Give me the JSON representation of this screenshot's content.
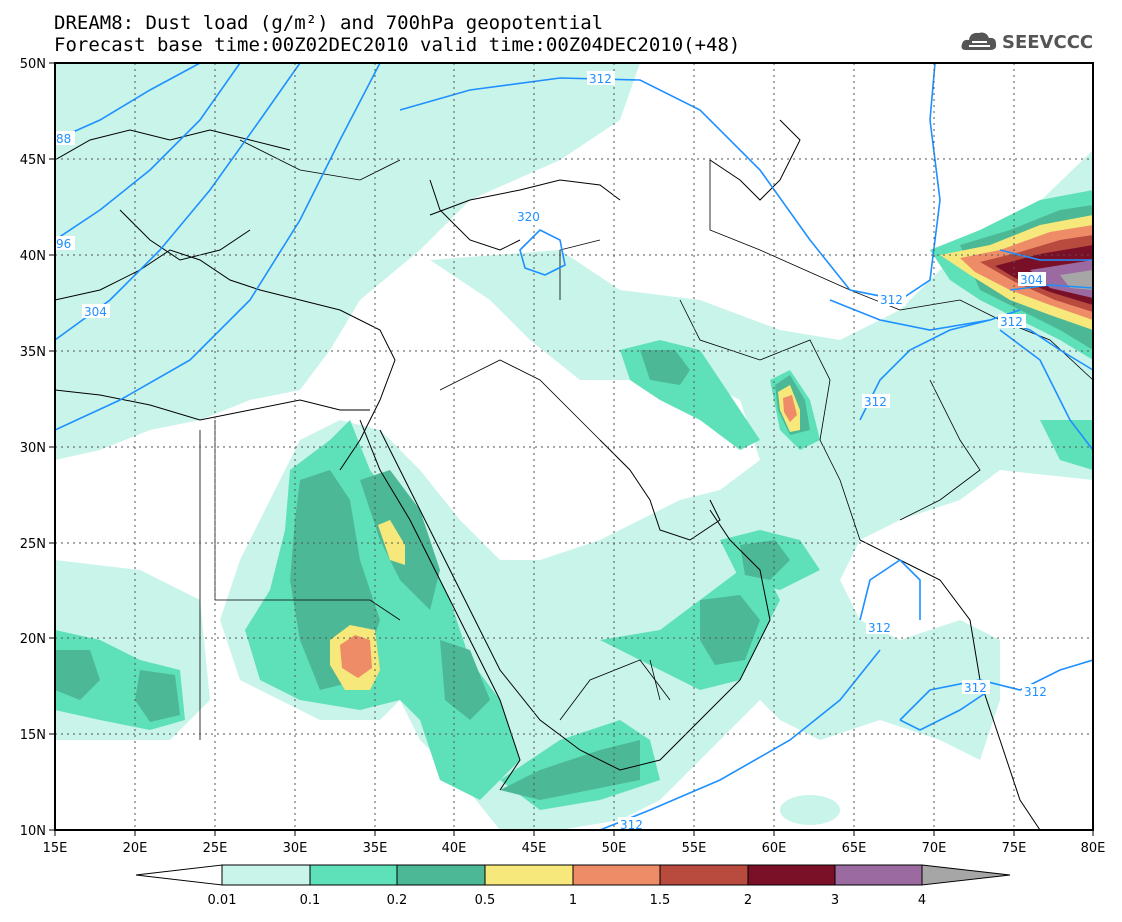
{
  "title": {
    "line1": "DREAM8: Dust load (g/m²) and 700hPa geopotential",
    "line2": "Forecast base time:00Z02DEC2010 valid time:00Z04DEC2010(+48)"
  },
  "logo": {
    "text": "SEEVCCC",
    "icon": "cloud-logo-icon"
  },
  "map": {
    "lon_labels": [
      "15E",
      "20E",
      "25E",
      "30E",
      "35E",
      "40E",
      "45E",
      "50E",
      "55E",
      "60E",
      "65E",
      "70E",
      "75E",
      "80E"
    ],
    "lat_labels": [
      "10N",
      "15N",
      "20N",
      "25N",
      "30N",
      "35N",
      "40N",
      "45N",
      "50N"
    ],
    "contour_labels": [
      "312",
      "320",
      "304",
      "96",
      "88",
      "304",
      "312",
      "312",
      "312",
      "312",
      "312",
      "312",
      "312"
    ]
  },
  "colorbar": {
    "labels": [
      "0.01",
      "0.1",
      "0.2",
      "0.5",
      "1",
      "1.5",
      "2",
      "3",
      "4"
    ],
    "colors": [
      "#c8f4ea",
      "#5ee0b8",
      "#4cb896",
      "#f6e87a",
      "#ee8c68",
      "#b84a3e",
      "#7a1028",
      "#9a6aa0",
      "#a6a6a6"
    ]
  },
  "colors": {
    "dust_light": "#c8f4ea",
    "dust_mid": "#5ee0b8",
    "dust_dark": "#4cb896",
    "contour": "#1e90ff"
  }
}
